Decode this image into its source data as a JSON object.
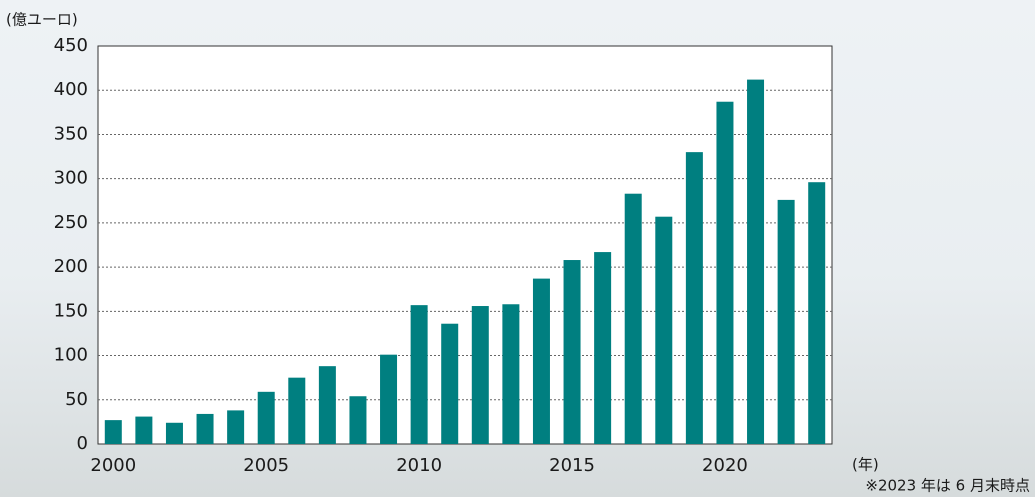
{
  "chart_data": {
    "type": "bar",
    "y_label": "(億ユーロ)",
    "x_label": "(年)",
    "note": "※2023 年は 6 月末時点",
    "categories": [
      "2000",
      null,
      null,
      null,
      null,
      "2005",
      null,
      null,
      null,
      null,
      "2010",
      null,
      null,
      null,
      null,
      "2015",
      null,
      null,
      null,
      null,
      "2020",
      null,
      null,
      null
    ],
    "values": [
      27,
      31,
      24,
      34,
      38,
      59,
      75,
      88,
      54,
      101,
      157,
      136,
      156,
      158,
      187,
      208,
      217,
      283,
      257,
      330,
      387,
      412,
      276,
      296
    ],
    "color": "#007f80",
    "ylim": [
      0,
      450
    ],
    "yticks": [
      0,
      50,
      100,
      150,
      200,
      250,
      300,
      350,
      400,
      450
    ],
    "grid": true
  }
}
